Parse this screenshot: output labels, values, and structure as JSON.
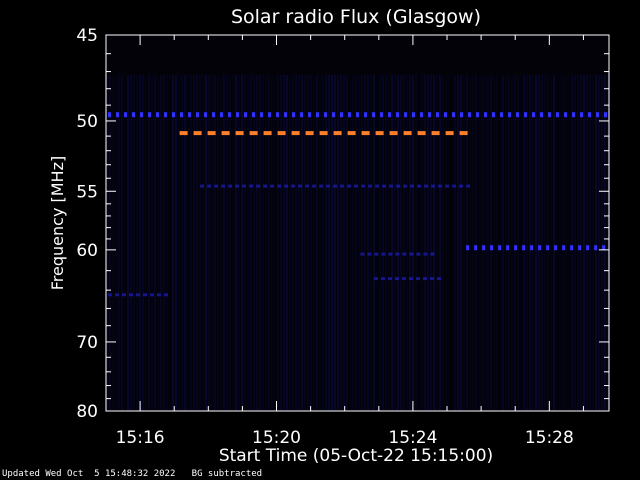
{
  "chart_data": {
    "type": "heatmap",
    "title": "Solar radio Flux (Glasgow)",
    "xlabel": "Start Time (05-Oct-22 15:15:00)",
    "ylabel": "Frequency [MHz]",
    "x_ticks": [
      "15:16",
      "15:20",
      "15:24",
      "15:28"
    ],
    "x_tick_minutes": [
      1,
      5,
      9,
      13
    ],
    "x_range_minutes": [
      0,
      14.75
    ],
    "y_ticks": [
      45,
      50,
      55,
      60,
      70,
      80
    ],
    "y_range": [
      45,
      80
    ],
    "y_scale": "reciprocal",
    "colorscale": [
      "#000000",
      "#0a0a3c",
      "#1a1aa0",
      "#3030ff",
      "#ff7f2a"
    ],
    "features": [
      {
        "label": "interference line",
        "freq_mhz": 49.6,
        "from_min": 0,
        "to_min": 14.75,
        "intensity": "blue"
      },
      {
        "label": "carrier",
        "freq_mhz": 50.8,
        "from_min": 2.1,
        "to_min": 10.8,
        "intensity": "orange"
      },
      {
        "label": "weak line",
        "freq_mhz": 54.6,
        "from_min": 2.7,
        "to_min": 10.8,
        "intensity": "dim"
      },
      {
        "label": "weak line",
        "freq_mhz": 59.8,
        "from_min": 10.5,
        "to_min": 14.75,
        "intensity": "blue"
      },
      {
        "label": "weak line",
        "freq_mhz": 64.5,
        "from_min": 0,
        "to_min": 1.9,
        "intensity": "dim"
      },
      {
        "label": "weak line",
        "freq_mhz": 60.4,
        "from_min": 7.4,
        "to_min": 9.6,
        "intensity": "dim"
      },
      {
        "label": "weak line",
        "freq_mhz": 62.8,
        "from_min": 7.8,
        "to_min": 9.9,
        "intensity": "dim"
      }
    ]
  },
  "footer": {
    "updated": "Updated Wed Oct  5 15:48:32 2022",
    "note": "BG subtracted"
  }
}
